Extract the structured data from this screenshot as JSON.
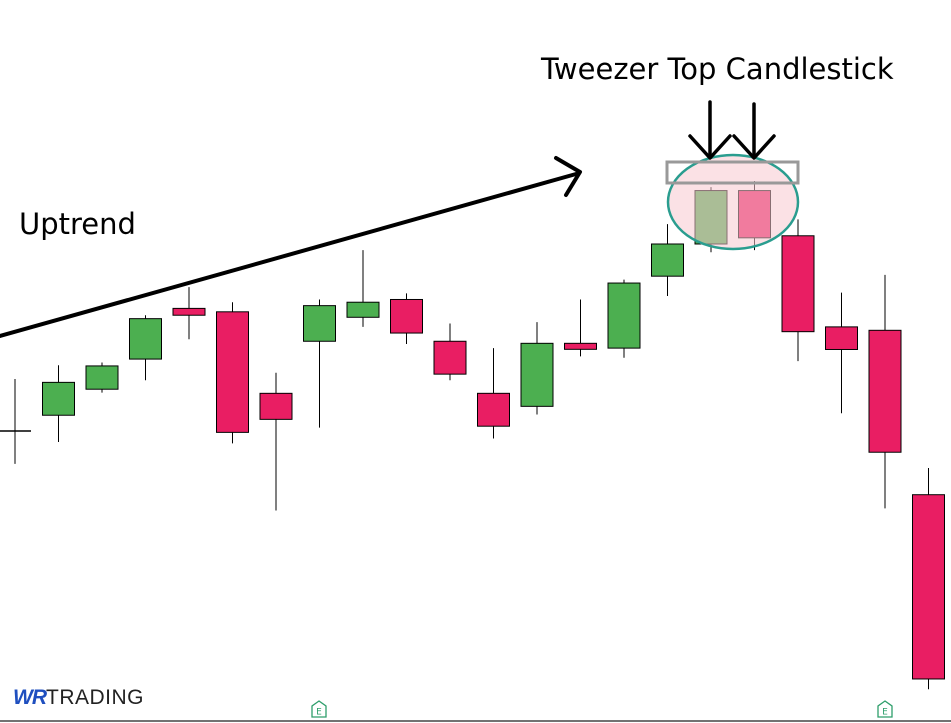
{
  "colors": {
    "bullish": "#4caf50",
    "bearish": "#e91e63",
    "highlight_fill": "#f8c9cf",
    "highlight_stroke": "#2a9d8f",
    "box_stroke": "#999999",
    "marker": "#2e9e6b",
    "logo_accent": "#1f4fbf"
  },
  "annotations": {
    "pattern_title": "Tweezer Top Candlestick",
    "trend_label": "Uptrend"
  },
  "logo": {
    "accent": "WR",
    "rest": "TRADING"
  },
  "markers": [
    {
      "label": "E",
      "icon": "earnings-marker-icon"
    },
    {
      "label": "E",
      "icon": "earnings-marker-icon"
    }
  ],
  "chart_data": {
    "type": "candlestick",
    "axes_visible": false,
    "grid": false,
    "ylim": [
      0,
      100
    ],
    "highlighted_candles": [
      15,
      16
    ],
    "candles": [
      {
        "open": 40.0,
        "high": 47.6,
        "low": 35.2,
        "close": 40.0
      },
      {
        "open": 42.3,
        "high": 49.6,
        "low": 38.4,
        "close": 47.1
      },
      {
        "open": 46.1,
        "high": 50.0,
        "low": 45.6,
        "close": 49.5
      },
      {
        "open": 50.5,
        "high": 56.9,
        "low": 47.4,
        "close": 56.4
      },
      {
        "open": 57.9,
        "high": 61.0,
        "low": 53.4,
        "close": 56.9
      },
      {
        "open": 57.4,
        "high": 58.8,
        "low": 38.2,
        "close": 39.8
      },
      {
        "open": 45.5,
        "high": 48.5,
        "low": 28.4,
        "close": 41.7
      },
      {
        "open": 53.1,
        "high": 59.2,
        "low": 40.5,
        "close": 58.3
      },
      {
        "open": 56.6,
        "high": 66.4,
        "low": 55.2,
        "close": 58.8
      },
      {
        "open": 59.2,
        "high": 60.1,
        "low": 52.7,
        "close": 54.3
      },
      {
        "open": 53.1,
        "high": 55.7,
        "low": 47.4,
        "close": 48.3
      },
      {
        "open": 45.5,
        "high": 52.1,
        "low": 38.9,
        "close": 40.7
      },
      {
        "open": 43.6,
        "high": 55.9,
        "low": 42.4,
        "close": 52.8
      },
      {
        "open": 52.8,
        "high": 59.2,
        "low": 50.9,
        "close": 52.1
      },
      {
        "open": 52.1,
        "high": 62.1,
        "low": 50.7,
        "close": 61.6
      },
      {
        "open": 62.6,
        "high": 70.2,
        "low": 59.7,
        "close": 67.3
      },
      {
        "open": 67.3,
        "high": 75.6,
        "low": 66.1,
        "close": 75.1
      },
      {
        "open": 75.1,
        "high": 76.5,
        "low": 66.4,
        "close": 68.2
      },
      {
        "open": 68.5,
        "high": 70.9,
        "low": 50.2,
        "close": 54.5
      },
      {
        "open": 55.2,
        "high": 60.2,
        "low": 42.6,
        "close": 51.9
      },
      {
        "open": 54.7,
        "high": 62.8,
        "low": 28.7,
        "close": 36.9
      },
      {
        "open": 30.7,
        "high": 34.6,
        "low": 2.3,
        "close": 3.8
      }
    ]
  }
}
